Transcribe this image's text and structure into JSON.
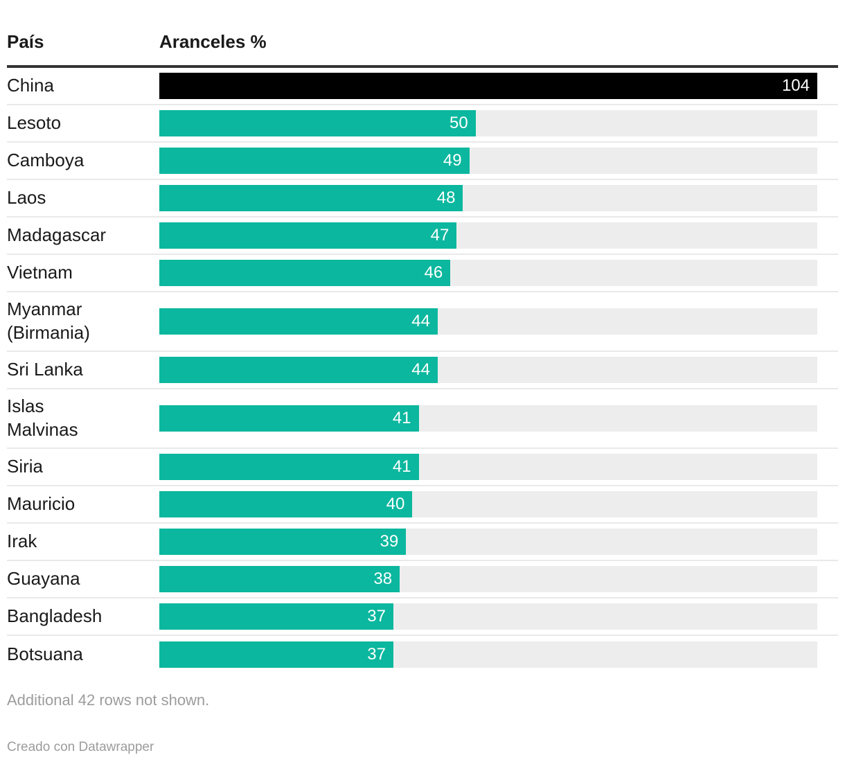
{
  "table": {
    "headers": {
      "country": "País",
      "tariff": "Aranceles %"
    }
  },
  "rows": [
    {
      "country": "China",
      "value": 104,
      "highlight": true
    },
    {
      "country": "Lesoto",
      "value": 50,
      "highlight": false
    },
    {
      "country": "Camboya",
      "value": 49,
      "highlight": false
    },
    {
      "country": "Laos",
      "value": 48,
      "highlight": false
    },
    {
      "country": "Madagascar",
      "value": 47,
      "highlight": false
    },
    {
      "country": "Vietnam",
      "value": 46,
      "highlight": false
    },
    {
      "country": "Myanmar (Birmania)",
      "value": 44,
      "highlight": false
    },
    {
      "country": "Sri Lanka",
      "value": 44,
      "highlight": false
    },
    {
      "country": "Islas Malvinas",
      "value": 41,
      "highlight": false
    },
    {
      "country": "Siria",
      "value": 41,
      "highlight": false
    },
    {
      "country": "Mauricio",
      "value": 40,
      "highlight": false
    },
    {
      "country": "Irak",
      "value": 39,
      "highlight": false
    },
    {
      "country": "Guayana",
      "value": 38,
      "highlight": false
    },
    {
      "country": "Bangladesh",
      "value": 37,
      "highlight": false
    },
    {
      "country": "Botsuana",
      "value": 37,
      "highlight": false
    }
  ],
  "footer": {
    "note": "Additional 42 rows not shown.",
    "credit": "Creado con Datawrapper"
  },
  "colors": {
    "bar": "#0bb79e",
    "highlight_bar": "#000000",
    "track": "#ededed",
    "header_rule": "#333333",
    "separator": "#e9e9e9",
    "value_text": "#ffffff",
    "label_text": "#1a1a1a",
    "footer_text": "#9c9c9c"
  },
  "chart_data": {
    "type": "bar",
    "title": "",
    "xlabel": "Aranceles %",
    "ylabel": "País",
    "orientation": "horizontal",
    "categories": [
      "China",
      "Lesoto",
      "Camboya",
      "Laos",
      "Madagascar",
      "Vietnam",
      "Myanmar (Birmania)",
      "Sri Lanka",
      "Islas Malvinas",
      "Siria",
      "Mauricio",
      "Irak",
      "Guayana",
      "Bangladesh",
      "Botsuana"
    ],
    "values": [
      104,
      50,
      49,
      48,
      47,
      46,
      44,
      44,
      41,
      41,
      40,
      39,
      38,
      37,
      37
    ],
    "xlim": [
      0,
      104
    ],
    "grid": false,
    "legend": false,
    "data_labels": "inside-end",
    "highlighted_category": "China"
  }
}
